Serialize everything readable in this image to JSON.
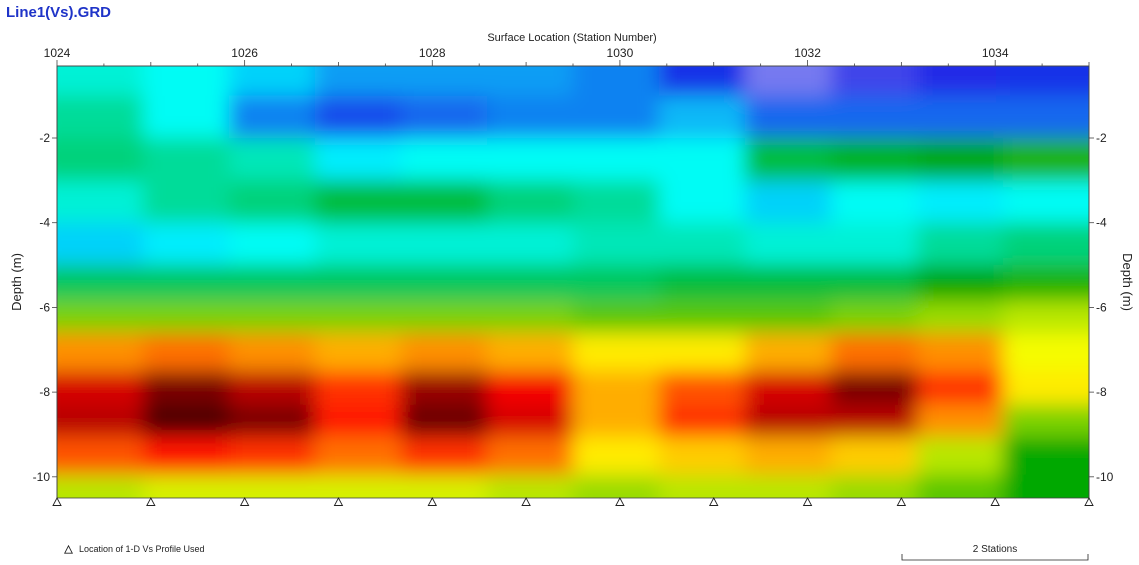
{
  "window": {
    "title": "Line1(Vs).GRD"
  },
  "chart_data": {
    "type": "heatmap",
    "title": "",
    "xlabel": "Surface Location (Station Number)",
    "ylabel_left": "Depth (m)",
    "ylabel_right": "Depth (m)",
    "xlim": [
      1024,
      1035
    ],
    "ylim": [
      -10.5,
      -0.3
    ],
    "x_ticks": [
      1024,
      1026,
      1028,
      1030,
      1032,
      1034
    ],
    "y_ticks_left": [
      -2,
      -4,
      -6,
      -8,
      -10
    ],
    "y_ticks_right": [
      -2,
      -4,
      -6,
      -8,
      -10
    ],
    "colormap": [
      "#ffffff",
      "#1a20e6",
      "#00ffff",
      "#00a800",
      "#ffff00",
      "#ff0000",
      "#000000"
    ],
    "rows": [
      {
        "depth": -0.5,
        "values": [
          0.36,
          0.34,
          0.3,
          0.26,
          0.26,
          0.26,
          0.24,
          0.18,
          0.1,
          0.14,
          0.16,
          0.18
        ]
      },
      {
        "depth": -1.5,
        "values": [
          0.4,
          0.34,
          0.24,
          0.2,
          0.22,
          0.24,
          0.24,
          0.28,
          0.22,
          0.22,
          0.22,
          0.22
        ]
      },
      {
        "depth": -2.5,
        "values": [
          0.42,
          0.4,
          0.38,
          0.32,
          0.34,
          0.34,
          0.34,
          0.34,
          0.46,
          0.48,
          0.5,
          0.52
        ]
      },
      {
        "depth": -3.5,
        "values": [
          0.36,
          0.4,
          0.42,
          0.46,
          0.46,
          0.42,
          0.4,
          0.34,
          0.3,
          0.34,
          0.32,
          0.34
        ]
      },
      {
        "depth": -4.5,
        "values": [
          0.3,
          0.32,
          0.34,
          0.36,
          0.36,
          0.36,
          0.38,
          0.38,
          0.36,
          0.36,
          0.4,
          0.42
        ]
      },
      {
        "depth": -5.5,
        "values": [
          0.44,
          0.44,
          0.44,
          0.44,
          0.44,
          0.44,
          0.44,
          0.46,
          0.46,
          0.46,
          0.5,
          0.52
        ]
      },
      {
        "depth": -6.2,
        "values": [
          0.58,
          0.58,
          0.58,
          0.58,
          0.58,
          0.58,
          0.56,
          0.56,
          0.56,
          0.58,
          0.6,
          0.62
        ]
      },
      {
        "depth": -7.0,
        "values": [
          0.74,
          0.76,
          0.74,
          0.72,
          0.74,
          0.72,
          0.68,
          0.68,
          0.72,
          0.76,
          0.74,
          0.66
        ]
      },
      {
        "depth": -8.0,
        "values": [
          0.86,
          0.92,
          0.88,
          0.8,
          0.9,
          0.84,
          0.72,
          0.78,
          0.86,
          0.92,
          0.8,
          0.68
        ]
      },
      {
        "depth": -8.6,
        "values": [
          0.88,
          0.95,
          0.92,
          0.82,
          0.93,
          0.86,
          0.72,
          0.8,
          0.88,
          0.88,
          0.74,
          0.58
        ]
      },
      {
        "depth": -9.5,
        "values": [
          0.78,
          0.82,
          0.8,
          0.76,
          0.8,
          0.76,
          0.68,
          0.7,
          0.72,
          0.7,
          0.62,
          0.5
        ]
      },
      {
        "depth": -10.4,
        "values": [
          0.62,
          0.64,
          0.64,
          0.64,
          0.64,
          0.62,
          0.6,
          0.62,
          0.62,
          0.6,
          0.56,
          0.5
        ]
      }
    ],
    "profile_markers": [
      1024,
      1025,
      1026,
      1027,
      1028,
      1029,
      1030,
      1031,
      1032,
      1033,
      1034,
      1035
    ],
    "legend": {
      "marker_label": "Location of 1-D Vs Profile Used"
    },
    "scale_bar": {
      "label": "2 Stations",
      "stations": 2
    }
  }
}
